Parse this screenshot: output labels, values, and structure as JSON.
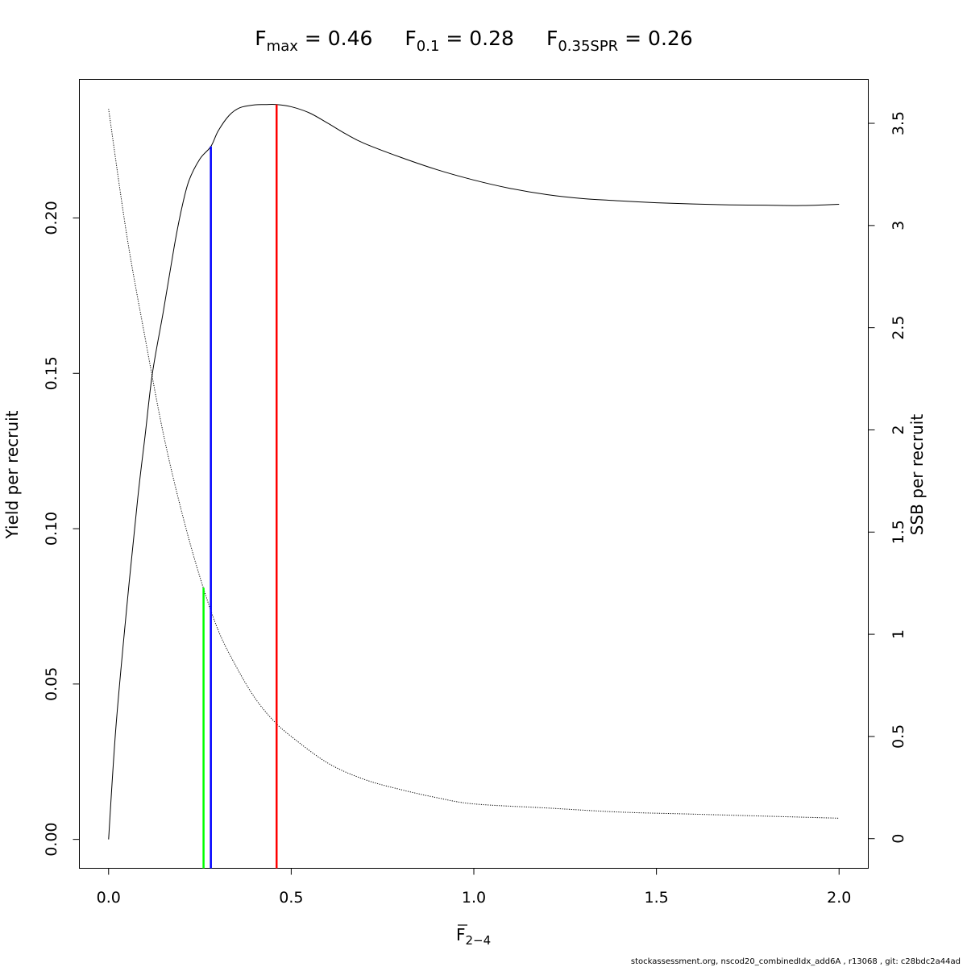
{
  "chart_data": {
    "type": "line",
    "title": {
      "fmax": {
        "main": "F",
        "sub": "max",
        "value_text": " = 0.46"
      },
      "f01": {
        "main": "F",
        "sub": "0.1",
        "value_text": " = 0.28"
      },
      "fspr": {
        "main": "F",
        "sub": "0.35SPR",
        "value_text": " = 0.26"
      }
    },
    "xlabel": {
      "main": "F",
      "sub": "2−4"
    },
    "ylabel_left": "Yield per recruit",
    "ylabel_right": "SSB per recruit",
    "xlim": [
      -0.08,
      2.08
    ],
    "ylim_left": [
      -0.0093,
      0.2446
    ],
    "ylim_right": [
      -0.145,
      3.715
    ],
    "x_ticks": [
      {
        "value": 0.0,
        "label": "0.0"
      },
      {
        "value": 0.5,
        "label": "0.5"
      },
      {
        "value": 1.0,
        "label": "1.0"
      },
      {
        "value": 1.5,
        "label": "1.5"
      },
      {
        "value": 2.0,
        "label": "2.0"
      }
    ],
    "y_left_ticks": [
      {
        "value": 0.0,
        "label": "0.00"
      },
      {
        "value": 0.05,
        "label": "0.05"
      },
      {
        "value": 0.1,
        "label": "0.10"
      },
      {
        "value": 0.15,
        "label": "0.15"
      },
      {
        "value": 0.2,
        "label": "0.20"
      }
    ],
    "y_right_ticks": [
      {
        "value": 0,
        "label": "0"
      },
      {
        "value": 0.5,
        "label": "0.5"
      },
      {
        "value": 1,
        "label": "1"
      },
      {
        "value": 1.5,
        "label": "1.5"
      },
      {
        "value": 2,
        "label": "2"
      },
      {
        "value": 2.5,
        "label": "2.5"
      },
      {
        "value": 3,
        "label": "3"
      },
      {
        "value": 3.5,
        "label": "3.5"
      }
    ],
    "series": [
      {
        "axis": "left",
        "style": "solid",
        "x": [
          0.0,
          0.02,
          0.05,
          0.08,
          0.1,
          0.12,
          0.15,
          0.18,
          0.2,
          0.22,
          0.25,
          0.28,
          0.3,
          0.33,
          0.36,
          0.4,
          0.43,
          0.46,
          0.5,
          0.55,
          0.6,
          0.65,
          0.7,
          0.8,
          0.9,
          1.0,
          1.1,
          1.2,
          1.3,
          1.4,
          1.5,
          1.6,
          1.7,
          1.8,
          1.9,
          2.0
        ],
        "y": [
          0.0,
          0.036,
          0.075,
          0.11,
          0.13,
          0.15,
          0.17,
          0.191,
          0.203,
          0.212,
          0.219,
          0.223,
          0.228,
          0.233,
          0.2355,
          0.2364,
          0.2365,
          0.2365,
          0.2358,
          0.2338,
          0.2305,
          0.227,
          0.224,
          0.2195,
          0.2155,
          0.2122,
          0.2095,
          0.2075,
          0.2062,
          0.2055,
          0.2049,
          0.2045,
          0.2042,
          0.2041,
          0.204,
          0.2044
        ]
      },
      {
        "axis": "right",
        "style": "dotted",
        "x": [
          0.0,
          0.05,
          0.1,
          0.15,
          0.2,
          0.25,
          0.3,
          0.35,
          0.4,
          0.45,
          0.5,
          0.6,
          0.7,
          0.8,
          0.9,
          1.0,
          1.2,
          1.4,
          1.6,
          1.8,
          2.0
        ],
        "y": [
          3.57,
          2.95,
          2.45,
          1.98,
          1.6,
          1.28,
          1.02,
          0.84,
          0.69,
          0.58,
          0.5,
          0.37,
          0.29,
          0.24,
          0.2,
          0.17,
          0.15,
          0.13,
          0.12,
          0.11,
          0.1
        ]
      }
    ],
    "reference_lines": [
      {
        "name": "Fmax",
        "x": 0.46,
        "y_top": 0.2365,
        "color": "#ff0000"
      },
      {
        "name": "F0.1",
        "x": 0.28,
        "y_top": 0.223,
        "color": "#0000ff"
      },
      {
        "name": "F0.35SPR",
        "x": 0.26,
        "y_top": 0.081,
        "color": "#00ff00"
      }
    ]
  },
  "footer": "stockassessment.org, nscod20_combinedIdx_add6A , r13068 , git: c28bdc2a44ad"
}
